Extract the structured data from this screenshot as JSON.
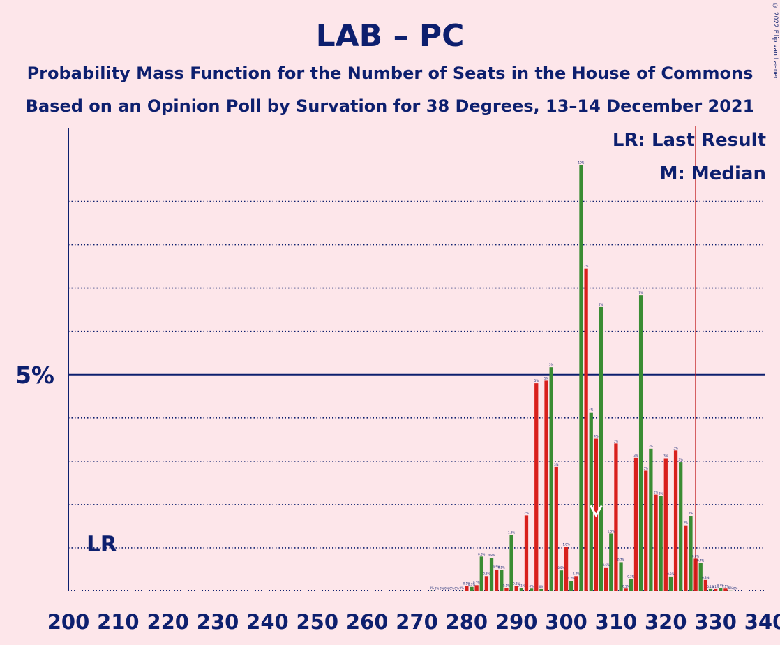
{
  "copyright": "© 2022 Filip van Laenen",
  "legend": {
    "lr": "LR: Last Result",
    "m": "M: Median"
  },
  "markers": {
    "lr_label": "LR",
    "lr_value": 326,
    "median": 306
  },
  "colors": {
    "red": "#d8201c",
    "green": "#3a8c33",
    "navy": "#0d1f6e",
    "background": "#fde6ea",
    "lr_line": "#c0171a"
  },
  "chart_data": {
    "type": "bar",
    "title": "LAB – PC",
    "subtitle1": "Probability Mass Function for the Number of Seats in the House of Commons",
    "subtitle2": "Based on an Opinion Poll by Survation for 38 Degrees, 13–14 December 2021",
    "xlim": [
      200,
      340
    ],
    "ylim": [
      0,
      10.7
    ],
    "ytick_label": "5%",
    "ytick_value": 5,
    "grid": "dotted every 1%",
    "xticks": [
      200,
      210,
      220,
      230,
      240,
      250,
      260,
      270,
      280,
      290,
      300,
      310,
      320,
      330,
      340
    ],
    "seats": [
      273,
      274,
      275,
      276,
      277,
      278,
      279,
      280,
      281,
      282,
      283,
      284,
      285,
      286,
      287,
      288,
      289,
      290,
      291,
      292,
      293,
      294,
      295,
      296,
      297,
      298,
      299,
      300,
      301,
      302,
      303,
      304,
      305,
      306,
      307,
      308,
      309,
      310,
      311,
      312,
      313,
      314,
      315,
      316,
      317,
      318,
      319,
      320,
      321,
      322,
      323,
      324,
      325,
      326,
      327,
      328,
      329,
      330,
      331,
      332,
      333,
      334
    ],
    "values": [
      0.02,
      0.01,
      0.01,
      0.01,
      0.01,
      0.01,
      0.02,
      0.12,
      0.1,
      0.14,
      0.8,
      0.35,
      0.77,
      0.5,
      0.49,
      0.07,
      1.3,
      0.12,
      0.07,
      1.75,
      0.06,
      4.8,
      0.05,
      4.86,
      5.17,
      2.87,
      0.48,
      1.02,
      0.24,
      0.35,
      9.84,
      7.45,
      4.13,
      3.52,
      6.56,
      0.55,
      1.33,
      3.41,
      0.67,
      0.06,
      0.28,
      3.08,
      6.83,
      2.78,
      3.29,
      2.23,
      2.2,
      3.07,
      0.34,
      3.25,
      2.98,
      1.52,
      1.74,
      0.75,
      0.65,
      0.26,
      0.05,
      0.05,
      0.08,
      0.06,
      0.02,
      0.01
    ],
    "data_labels": [
      "0%",
      "0%",
      "0%",
      "0%",
      "0%",
      "0%",
      "0%",
      "0.1%",
      "0.1%",
      "0.1%",
      "0.8%",
      "0.3%",
      "0.8%",
      "0.5%",
      "0.5%",
      "0.1%",
      "1.3%",
      "0.1%",
      "0.1%",
      "2%",
      "0%",
      "5%",
      "0%",
      "5%",
      "5%",
      "3%",
      "0.5%",
      "1.0%",
      "0.2%",
      "0.4%",
      "10%",
      "7%",
      "4%",
      "4%",
      "7%",
      "0.6%",
      "1.3%",
      "3%",
      "0.7%",
      "0.1%",
      "0.3%",
      "3%",
      "7%",
      "3%",
      "3%",
      "2%",
      "2%",
      "3%",
      "0.3%",
      "3%",
      "3%",
      "2%",
      "2%",
      "0.8%",
      "0.7%",
      "0.3%",
      "0.1%",
      "0.1%",
      "0.1%",
      "0.1%",
      "0%",
      "0%"
    ]
  }
}
